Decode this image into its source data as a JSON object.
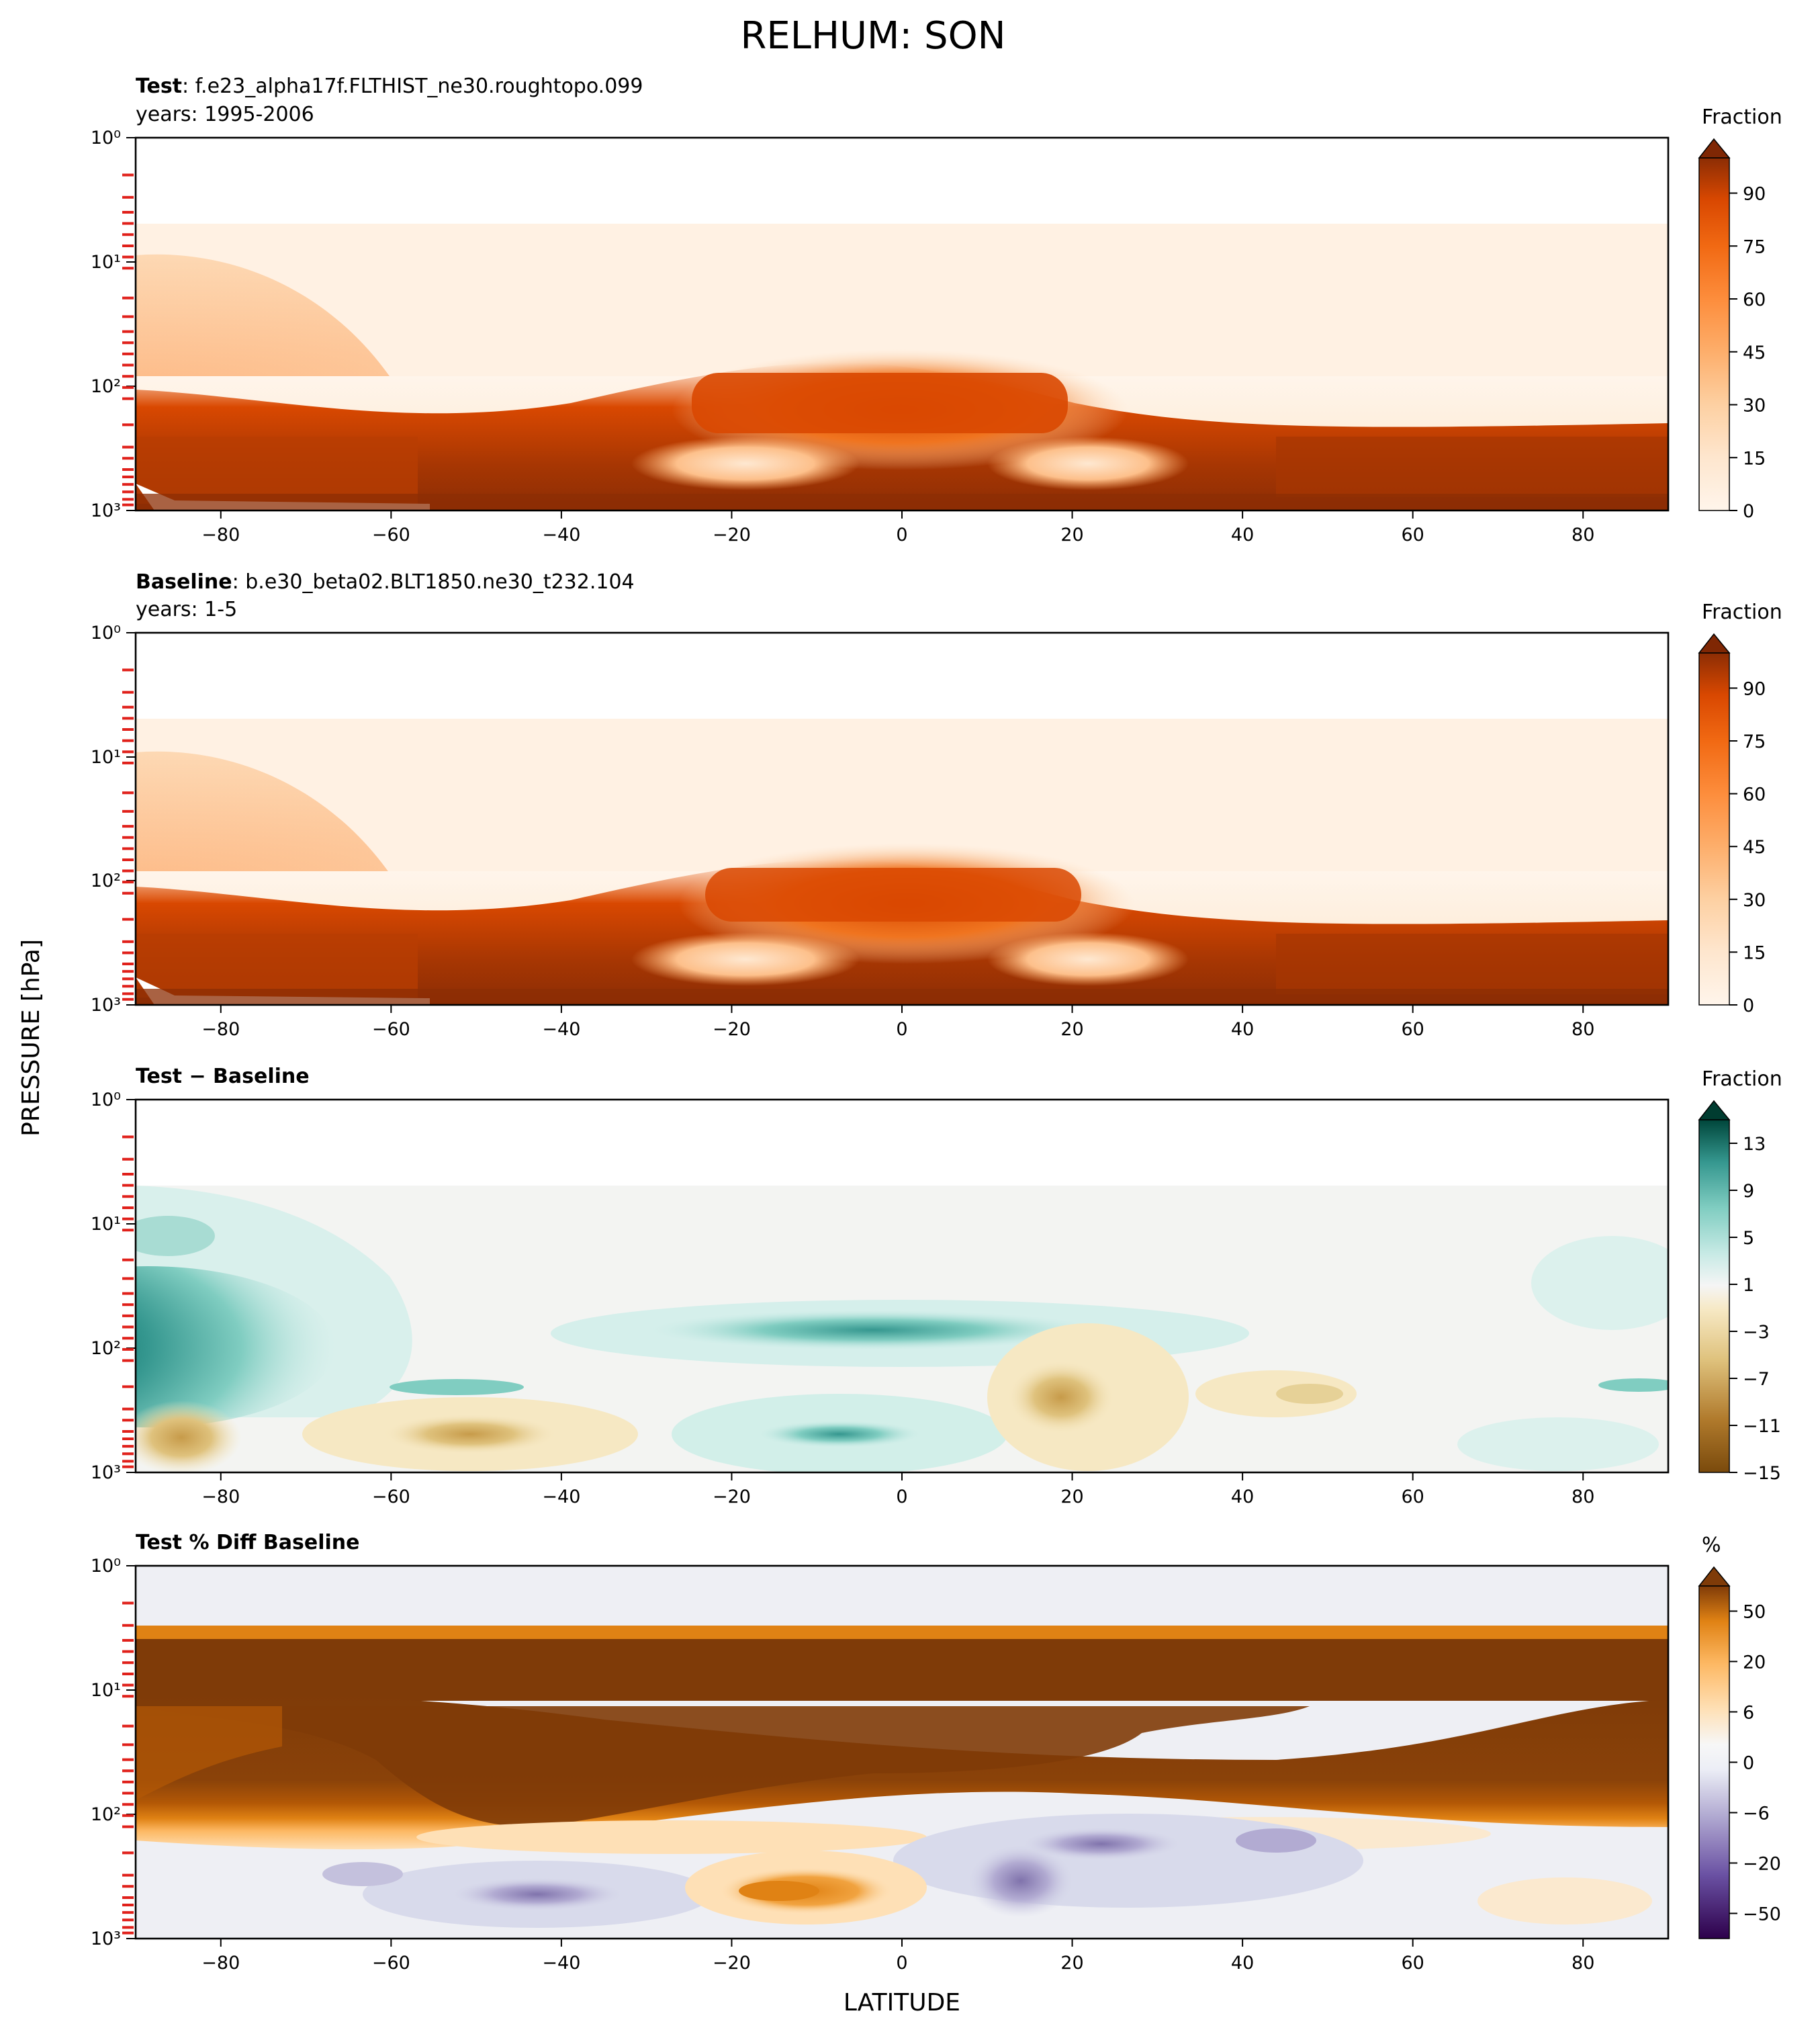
{
  "figure": {
    "title": "RELHUM: SON",
    "ylabel": "PRESSURE [hPa]",
    "xlabel": "LATITUDE"
  },
  "chart_data": [
    {
      "type": "heatmap",
      "title_bold": "Test",
      "title_rest": ": f.e23_alpha17f.FLTHIST_ne30.roughtopo.099",
      "subtitle": "years: 1995-2006",
      "xticks": [
        "−80",
        "−60",
        "−40",
        "−20",
        "0",
        "20",
        "40",
        "60",
        "80"
      ],
      "xlim": [
        -90,
        90
      ],
      "yticks": [
        "10⁰",
        "10¹",
        "10²",
        "10³"
      ],
      "ylim": [
        1000,
        1
      ],
      "y_scale": "log",
      "colorbar": {
        "label": "Fraction",
        "ticks": [
          "0",
          "15",
          "30",
          "45",
          "60",
          "75",
          "90"
        ],
        "range": [
          0,
          100
        ],
        "extend": "max",
        "cmap": "oranges"
      }
    },
    {
      "type": "heatmap",
      "title_bold": "Baseline",
      "title_rest": ": b.e30_beta02.BLT1850.ne30_t232.104",
      "subtitle": "years: 1-5",
      "xticks": [
        "−80",
        "−60",
        "−40",
        "−20",
        "0",
        "20",
        "40",
        "60",
        "80"
      ],
      "xlim": [
        -90,
        90
      ],
      "yticks": [
        "10⁰",
        "10¹",
        "10²",
        "10³"
      ],
      "ylim": [
        1000,
        1
      ],
      "y_scale": "log",
      "colorbar": {
        "label": "Fraction",
        "ticks": [
          "0",
          "15",
          "30",
          "45",
          "60",
          "75",
          "90"
        ],
        "range": [
          0,
          100
        ],
        "extend": "max",
        "cmap": "oranges"
      }
    },
    {
      "type": "heatmap",
      "title_bold": "Test − Baseline",
      "title_rest": "",
      "subtitle": "",
      "xticks": [
        "−80",
        "−60",
        "−40",
        "−20",
        "0",
        "20",
        "40",
        "60",
        "80"
      ],
      "xlim": [
        -90,
        90
      ],
      "yticks": [
        "10⁰",
        "10¹",
        "10²",
        "10³"
      ],
      "ylim": [
        1000,
        1
      ],
      "y_scale": "log",
      "colorbar": {
        "label": "Fraction",
        "ticks": [
          "−15",
          "−11",
          "−7",
          "−3",
          "1",
          "5",
          "9",
          "13"
        ],
        "range": [
          -15,
          15
        ],
        "extend": "max",
        "cmap": "brown-teal"
      }
    },
    {
      "type": "heatmap",
      "title_bold": "Test % Diff Baseline",
      "title_rest": "",
      "subtitle": "",
      "xticks": [
        "−80",
        "−60",
        "−40",
        "−20",
        "0",
        "20",
        "40",
        "60",
        "80"
      ],
      "xlim": [
        -90,
        90
      ],
      "yticks": [
        "10⁰",
        "10¹",
        "10²",
        "10³"
      ],
      "ylim": [
        1000,
        1
      ],
      "y_scale": "log",
      "colorbar": {
        "label": "%",
        "ticks": [
          "−50",
          "−20",
          "−6",
          "0",
          "6",
          "20",
          "50"
        ],
        "range": [
          -100,
          100
        ],
        "extend": "max",
        "cmap": "purple-orange"
      }
    }
  ]
}
